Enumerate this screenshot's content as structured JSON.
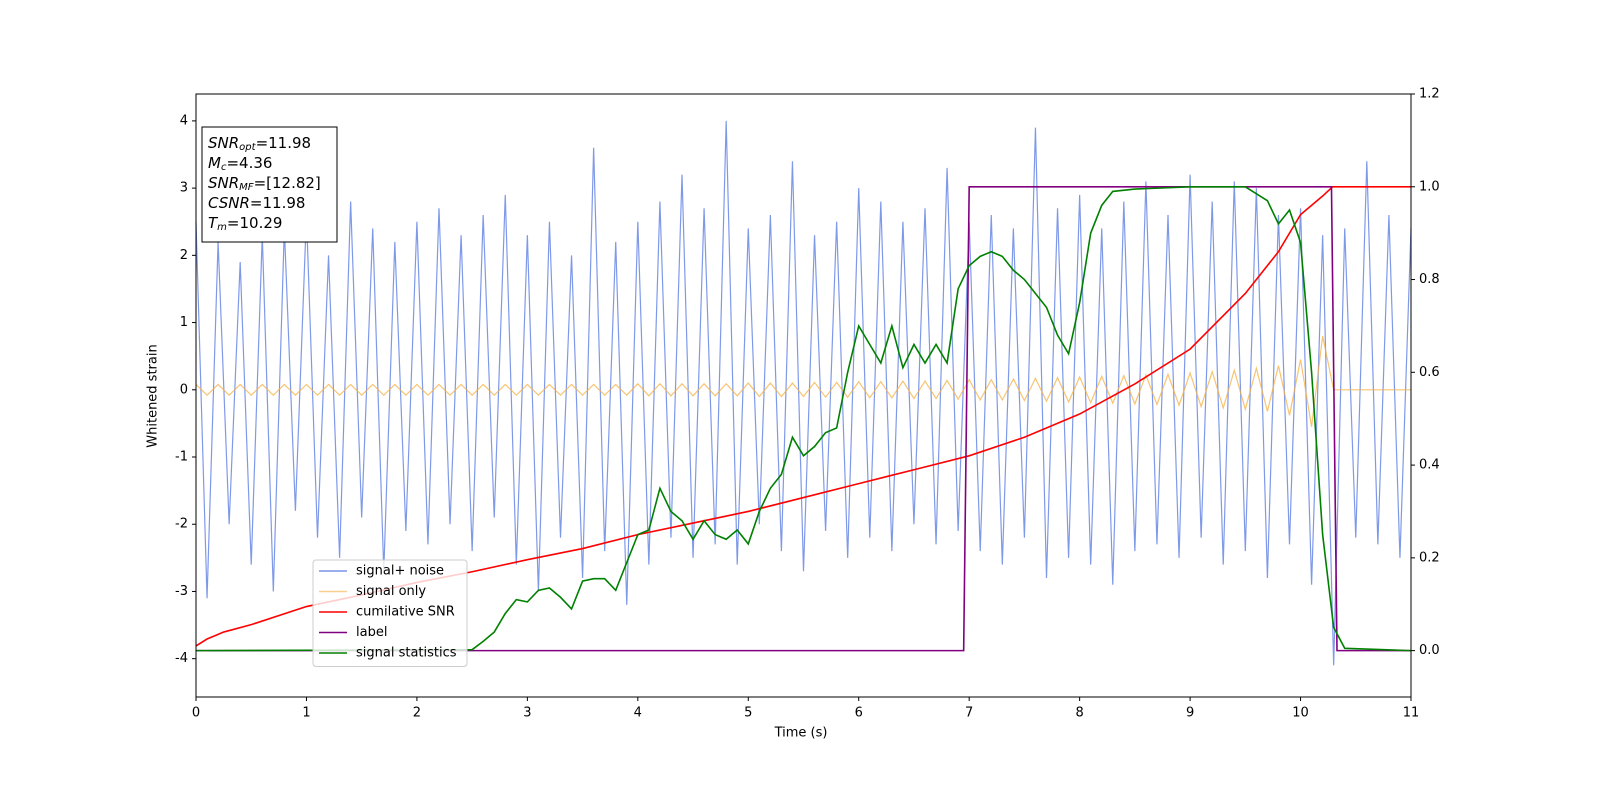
{
  "chart_data": {
    "type": "line",
    "xlabel": "Time (s)",
    "ylabel": "Whitened strain",
    "xlim": [
      0,
      11
    ],
    "ylim": [
      -4.57,
      4.4
    ],
    "y2lim": [
      -0.1,
      1.2
    ],
    "xticks": [
      0,
      1,
      2,
      3,
      4,
      5,
      6,
      7,
      8,
      9,
      10,
      11
    ],
    "yticks": [
      -4,
      -3,
      -2,
      -1,
      0,
      1,
      2,
      3,
      4
    ],
    "y2ticks": [
      {
        "value": 0,
        "label": "0.0"
      },
      0.2,
      0.4,
      0.6,
      0.8,
      {
        "value": 1,
        "label": "1.0"
      },
      1.2
    ],
    "legend": "lower left",
    "annotations": [
      {
        "main": "SNR",
        "sub": "opt",
        "rest": "=11.98"
      },
      {
        "main": "M",
        "sub": "c",
        "rest": "=4.36"
      },
      {
        "main": "SNR",
        "sub": "MF",
        "rest": "=[12.82]"
      },
      {
        "main": "CSNR",
        "sub": null,
        "rest": "=11.98"
      },
      {
        "main": "T",
        "sub": "m",
        "rest": "=10.29"
      }
    ],
    "x": [
      0,
      0.1,
      0.2,
      0.3,
      0.4,
      0.5,
      0.6,
      0.7,
      0.8,
      0.9,
      1,
      1.1,
      1.2,
      1.3,
      1.4,
      1.5,
      1.6,
      1.7,
      1.8,
      1.9,
      2,
      2.1,
      2.2,
      2.3,
      2.4,
      2.5,
      2.6,
      2.7,
      2.8,
      2.9,
      3,
      3.1,
      3.2,
      3.3,
      3.4,
      3.5,
      3.6,
      3.7,
      3.8,
      3.9,
      4,
      4.1,
      4.2,
      4.3,
      4.4,
      4.5,
      4.6,
      4.7,
      4.8,
      4.9,
      5,
      5.1,
      5.2,
      5.3,
      5.4,
      5.5,
      5.6,
      5.7,
      5.8,
      5.9,
      6,
      6.1,
      6.2,
      6.3,
      6.4,
      6.5,
      6.6,
      6.7,
      6.8,
      6.9,
      7,
      7.1,
      7.2,
      7.3,
      7.4,
      7.5,
      7.6,
      7.7,
      7.8,
      7.9,
      8,
      8.1,
      8.2,
      8.3,
      8.4,
      8.5,
      8.6,
      8.7,
      8.8,
      8.9,
      9,
      9.1,
      9.2,
      9.3,
      9.4,
      9.5,
      9.6,
      9.7,
      9.8,
      9.9,
      10,
      10.1,
      10.2,
      10.3,
      10.4,
      10.5,
      10.6,
      10.7,
      10.8,
      10.9,
      11
    ],
    "series": [
      {
        "name": "signal+ noise",
        "color": "#7893e8",
        "values": [
          2.5,
          -3.1,
          2.2,
          -2.0,
          1.9,
          -2.6,
          2.3,
          -3.0,
          2.4,
          -1.8,
          2.6,
          -2.2,
          2.0,
          -2.5,
          2.8,
          -1.9,
          2.4,
          -2.7,
          2.2,
          -2.1,
          2.5,
          -2.3,
          2.7,
          -2.0,
          2.3,
          -2.4,
          2.6,
          -1.9,
          2.9,
          -2.6,
          2.3,
          -3.0,
          2.5,
          -2.2,
          2.0,
          -2.8,
          3.6,
          -2.4,
          2.2,
          -3.2,
          2.5,
          -2.6,
          2.8,
          -2.2,
          3.2,
          -2.5,
          2.7,
          -2.3,
          4.0,
          -2.6,
          2.4,
          -2.0,
          2.6,
          -2.4,
          3.4,
          -2.7,
          2.3,
          -2.1,
          2.5,
          -2.5,
          3.0,
          -2.2,
          2.8,
          -2.4,
          2.5,
          -2.0,
          2.7,
          -2.3,
          3.3,
          -2.1,
          2.5,
          -2.4,
          2.6,
          -2.6,
          2.4,
          -2.2,
          3.9,
          -2.8,
          2.7,
          -2.5,
          2.9,
          -2.6,
          2.4,
          -2.9,
          2.8,
          -2.4,
          3.1,
          -2.3,
          2.6,
          -2.5,
          3.2,
          -2.2,
          2.8,
          -2.6,
          3.1,
          -2.4,
          3.0,
          -2.8,
          2.6,
          -2.3,
          2.7,
          -2.9,
          2.3,
          -4.1,
          2.4,
          -2.2,
          3.4,
          -2.3,
          2.6,
          -2.5,
          2.4
        ]
      },
      {
        "name": "signal only",
        "color": "#f5b041",
        "values": [
          0.08,
          -0.08,
          0.08,
          -0.08,
          0.08,
          -0.08,
          0.08,
          -0.08,
          0.08,
          -0.08,
          0.08,
          -0.08,
          0.08,
          -0.08,
          0.08,
          -0.08,
          0.08,
          -0.08,
          0.08,
          -0.08,
          0.08,
          -0.08,
          0.08,
          -0.08,
          0.08,
          -0.08,
          0.08,
          -0.08,
          0.08,
          -0.08,
          0.08,
          -0.08,
          0.08,
          -0.08,
          0.08,
          -0.08,
          0.08,
          -0.08,
          0.08,
          -0.08,
          0.09,
          -0.09,
          0.09,
          -0.09,
          0.09,
          -0.09,
          0.09,
          -0.09,
          0.09,
          -0.09,
          0.1,
          -0.1,
          0.1,
          -0.1,
          0.1,
          -0.1,
          0.11,
          -0.11,
          0.11,
          -0.11,
          0.12,
          -0.12,
          0.12,
          -0.12,
          0.13,
          -0.13,
          0.13,
          -0.13,
          0.14,
          -0.14,
          0.15,
          -0.15,
          0.15,
          -0.15,
          0.16,
          -0.16,
          0.17,
          -0.17,
          0.18,
          -0.18,
          0.19,
          -0.19,
          0.2,
          -0.2,
          0.21,
          -0.21,
          0.22,
          -0.22,
          0.23,
          -0.23,
          0.25,
          -0.25,
          0.27,
          -0.27,
          0.29,
          -0.29,
          0.32,
          -0.32,
          0.36,
          -0.38,
          0.45,
          -0.55,
          0.8,
          0,
          0,
          0,
          0,
          0,
          0,
          0,
          0
        ]
      },
      {
        "name": "cumilative SNR",
        "color": "#ff0000",
        "axis": "y2",
        "x": [
          0,
          0.1,
          0.25,
          0.5,
          1,
          1.5,
          2,
          2.5,
          3,
          3.5,
          4,
          4.5,
          5,
          5.5,
          6,
          6.5,
          7,
          7.5,
          8,
          8.5,
          9,
          9.5,
          9.8,
          10,
          10.2,
          10.29,
          10.3,
          11
        ],
        "values": [
          0.01,
          0.025,
          0.04,
          0.056,
          0.095,
          0.12,
          0.147,
          0.17,
          0.196,
          0.22,
          0.25,
          0.275,
          0.3,
          0.33,
          0.36,
          0.39,
          0.42,
          0.46,
          0.51,
          0.575,
          0.65,
          0.77,
          0.86,
          0.94,
          0.98,
          1.0,
          1.0,
          1.0
        ]
      },
      {
        "name": "label",
        "color": "#800080",
        "axis": "y2",
        "x": [
          0,
          6.95,
          7,
          10.28,
          10.33,
          11
        ],
        "values": [
          0,
          0,
          1,
          1,
          0,
          0
        ]
      },
      {
        "name": "signal statistics",
        "color": "#008000",
        "axis": "y2",
        "x": [
          0,
          2.5,
          2.6,
          2.7,
          2.8,
          2.9,
          3,
          3.1,
          3.2,
          3.3,
          3.4,
          3.5,
          3.6,
          3.7,
          3.8,
          3.9,
          4,
          4.1,
          4.2,
          4.3,
          4.4,
          4.5,
          4.6,
          4.7,
          4.8,
          4.9,
          5,
          5.1,
          5.2,
          5.3,
          5.4,
          5.5,
          5.6,
          5.7,
          5.8,
          5.9,
          6,
          6.1,
          6.2,
          6.3,
          6.4,
          6.5,
          6.6,
          6.7,
          6.8,
          6.9,
          7,
          7.1,
          7.2,
          7.3,
          7.4,
          7.5,
          7.6,
          7.7,
          7.8,
          7.9,
          8,
          8.1,
          8.2,
          8.3,
          8.5,
          9,
          9.5,
          9.7,
          9.8,
          9.9,
          10,
          10.1,
          10.2,
          10.3,
          10.4,
          11
        ],
        "values": [
          0,
          0.002,
          0.02,
          0.04,
          0.08,
          0.11,
          0.105,
          0.13,
          0.135,
          0.115,
          0.09,
          0.15,
          0.155,
          0.155,
          0.13,
          0.19,
          0.25,
          0.26,
          0.35,
          0.3,
          0.28,
          0.24,
          0.28,
          0.25,
          0.24,
          0.26,
          0.23,
          0.3,
          0.35,
          0.38,
          0.46,
          0.42,
          0.44,
          0.47,
          0.48,
          0.6,
          0.7,
          0.66,
          0.62,
          0.7,
          0.61,
          0.66,
          0.62,
          0.66,
          0.62,
          0.78,
          0.83,
          0.85,
          0.86,
          0.85,
          0.82,
          0.8,
          0.77,
          0.74,
          0.68,
          0.64,
          0.75,
          0.9,
          0.96,
          0.99,
          0.995,
          1.0,
          1.0,
          0.97,
          0.92,
          0.95,
          0.88,
          0.6,
          0.25,
          0.05,
          0.005,
          0
        ]
      }
    ]
  }
}
